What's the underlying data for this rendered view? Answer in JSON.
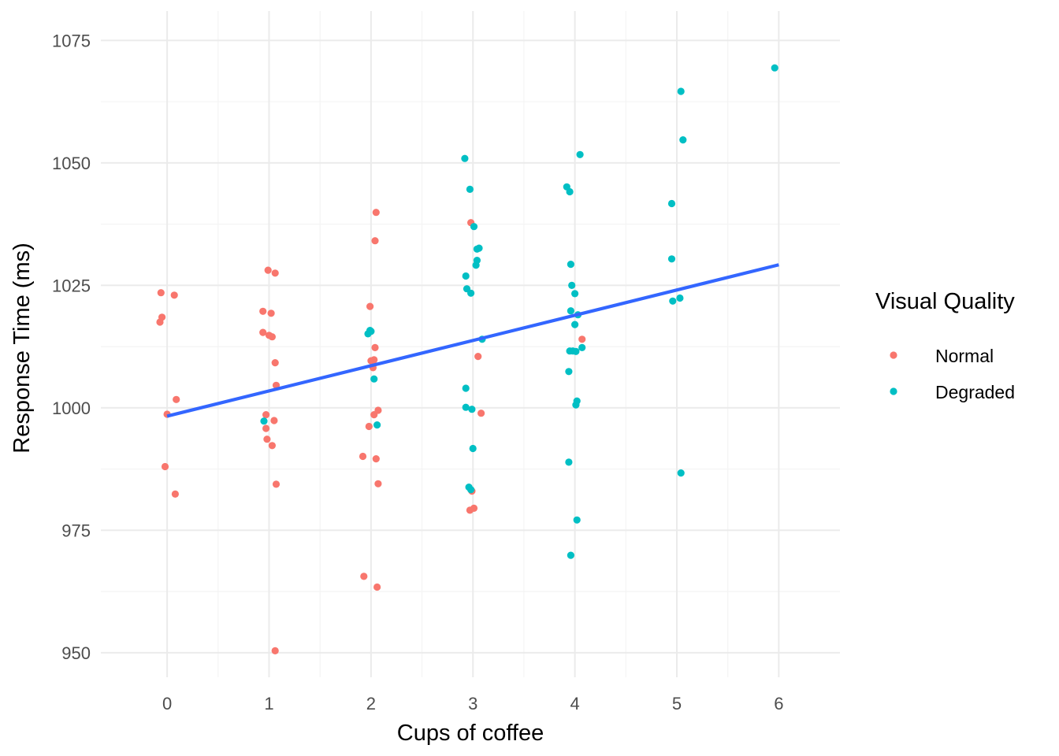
{
  "chart_data": {
    "type": "scatter",
    "title": "",
    "xlabel": "Cups of coffee",
    "ylabel": "Response Time (ms)",
    "xlim": [
      -0.65,
      6.6
    ],
    "ylim": [
      945,
      1081
    ],
    "x_ticks": [
      0,
      1,
      2,
      3,
      4,
      5,
      6
    ],
    "y_ticks": [
      950,
      975,
      1000,
      1025,
      1050,
      1075
    ],
    "grid": true,
    "legend": {
      "title": "Visual Quality",
      "placement": "right",
      "entries": [
        "Normal",
        "Degraded"
      ]
    },
    "series": [
      {
        "name": "Normal",
        "color": "#f8766d",
        "points": [
          [
            -0.06,
            1023.5
          ],
          [
            -0.05,
            1018.5
          ],
          [
            -0.07,
            1017.5
          ],
          [
            0.07,
            1023.0
          ],
          [
            0.09,
            1001.7
          ],
          [
            0.0,
            998.7
          ],
          [
            -0.02,
            988.0
          ],
          [
            0.08,
            982.4
          ],
          [
            0.99,
            1028.1
          ],
          [
            1.06,
            1027.5
          ],
          [
            0.94,
            1019.7
          ],
          [
            1.02,
            1019.3
          ],
          [
            0.94,
            1015.4
          ],
          [
            1.0,
            1014.8
          ],
          [
            1.03,
            1014.5
          ],
          [
            1.06,
            1009.2
          ],
          [
            1.07,
            1004.6
          ],
          [
            0.97,
            998.6
          ],
          [
            1.05,
            997.4
          ],
          [
            0.97,
            995.8
          ],
          [
            0.98,
            993.6
          ],
          [
            1.03,
            992.3
          ],
          [
            1.07,
            984.4
          ],
          [
            1.06,
            950.4
          ],
          [
            2.05,
            1039.9
          ],
          [
            2.04,
            1034.1
          ],
          [
            1.99,
            1020.7
          ],
          [
            2.04,
            1012.3
          ],
          [
            2.0,
            1009.6
          ],
          [
            2.03,
            1009.8
          ],
          [
            2.02,
            1008.2
          ],
          [
            2.07,
            999.5
          ],
          [
            2.03,
            998.6
          ],
          [
            1.98,
            996.2
          ],
          [
            1.92,
            990.1
          ],
          [
            2.05,
            989.6
          ],
          [
            2.07,
            984.5
          ],
          [
            1.93,
            965.6
          ],
          [
            2.06,
            963.4
          ],
          [
            2.98,
            1037.8
          ],
          [
            3.05,
            1010.5
          ],
          [
            3.08,
            998.9
          ],
          [
            2.99,
            983.0
          ],
          [
            3.01,
            979.5
          ],
          [
            2.97,
            979.1
          ],
          [
            4.07,
            1014.0
          ]
        ]
      },
      {
        "name": "Degraded",
        "color": "#00bfc4",
        "points": [
          [
            0.95,
            997.3
          ],
          [
            1.97,
            1015.1
          ],
          [
            1.99,
            1015.8
          ],
          [
            2.0,
            1015.6
          ],
          [
            2.03,
            1005.9
          ],
          [
            2.06,
            996.5
          ],
          [
            2.92,
            1050.9
          ],
          [
            2.97,
            1044.6
          ],
          [
            3.01,
            1037.0
          ],
          [
            3.06,
            1032.6
          ],
          [
            3.04,
            1032.4
          ],
          [
            3.04,
            1030.1
          ],
          [
            3.03,
            1029.1
          ],
          [
            2.93,
            1026.9
          ],
          [
            2.94,
            1024.3
          ],
          [
            2.98,
            1023.4
          ],
          [
            3.09,
            1014.0
          ],
          [
            2.93,
            1004.0
          ],
          [
            2.93,
            1000.1
          ],
          [
            2.99,
            999.7
          ],
          [
            3.0,
            991.7
          ],
          [
            2.96,
            983.8
          ],
          [
            2.98,
            983.3
          ],
          [
            4.05,
            1051.7
          ],
          [
            3.92,
            1045.1
          ],
          [
            3.95,
            1044.1
          ],
          [
            3.96,
            1029.3
          ],
          [
            3.97,
            1025.0
          ],
          [
            4.0,
            1023.3
          ],
          [
            3.96,
            1019.8
          ],
          [
            4.03,
            1019.0
          ],
          [
            4.0,
            1017.0
          ],
          [
            3.95,
            1011.6
          ],
          [
            3.98,
            1011.6
          ],
          [
            4.01,
            1011.5
          ],
          [
            4.07,
            1012.3
          ],
          [
            3.94,
            1007.4
          ],
          [
            4.02,
            1001.4
          ],
          [
            4.01,
            1000.6
          ],
          [
            3.94,
            988.9
          ],
          [
            4.02,
            977.1
          ],
          [
            3.96,
            969.9
          ],
          [
            5.04,
            1064.6
          ],
          [
            5.06,
            1054.7
          ],
          [
            4.95,
            1041.7
          ],
          [
            4.95,
            1030.4
          ],
          [
            5.03,
            1022.4
          ],
          [
            4.96,
            1021.8
          ],
          [
            5.04,
            986.7
          ],
          [
            5.96,
            1069.4
          ]
        ]
      }
    ],
    "trend_line": {
      "color": "#3366ff",
      "x_range": [
        0,
        6
      ],
      "y_at_start": 998.3,
      "y_at_end": 1029.2
    }
  }
}
